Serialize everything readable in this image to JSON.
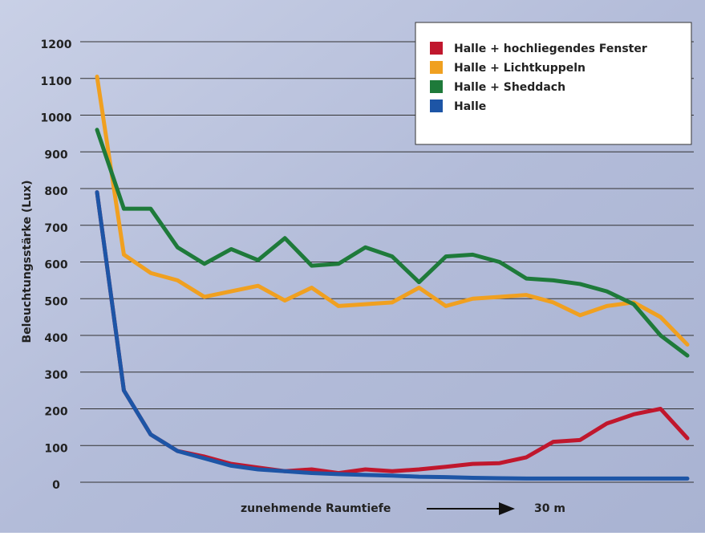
{
  "chart_data": {
    "type": "line",
    "y_label": "Beleuchtungsstärke (Lux)",
    "x_label": "zunehmende Raumtiefe",
    "x_end_label": "30 m",
    "categories": [
      null,
      null,
      null,
      null,
      null,
      null,
      null,
      null,
      null,
      null,
      null,
      null,
      null,
      null,
      null,
      null,
      null,
      null,
      null,
      null,
      null,
      null,
      null
    ],
    "ylim": [
      0,
      1200
    ],
    "yticks": [
      0,
      100,
      200,
      300,
      400,
      500,
      600,
      700,
      800,
      900,
      1000,
      1100,
      1200
    ],
    "grid": true,
    "legend": "top-right",
    "series": [
      {
        "name": "Halle +  hochliegendes Fenster",
        "color": "#c0172d",
        "values": [
          790,
          250,
          130,
          85,
          70,
          50,
          40,
          30,
          35,
          25,
          35,
          30,
          35,
          42,
          50,
          52,
          68,
          110,
          115,
          160,
          185,
          200,
          120
        ]
      },
      {
        "name": "Halle + Lichtkuppeln",
        "color": "#f0a020",
        "values": [
          1105,
          620,
          570,
          550,
          505,
          520,
          535,
          495,
          530,
          480,
          485,
          490,
          530,
          480,
          500,
          505,
          510,
          490,
          455,
          480,
          490,
          450,
          375
        ]
      },
      {
        "name": "Halle + Sheddach",
        "color": "#1e7a3a",
        "values": [
          960,
          745,
          745,
          640,
          595,
          635,
          605,
          665,
          590,
          595,
          640,
          615,
          545,
          615,
          620,
          600,
          555,
          550,
          540,
          520,
          485,
          400,
          345
        ]
      },
      {
        "name": "Halle",
        "color": "#1d55a6",
        "values": [
          790,
          250,
          130,
          85,
          65,
          45,
          35,
          30,
          25,
          22,
          20,
          18,
          15,
          14,
          12,
          11,
          10,
          10,
          10,
          10,
          10,
          10,
          10
        ]
      }
    ]
  }
}
